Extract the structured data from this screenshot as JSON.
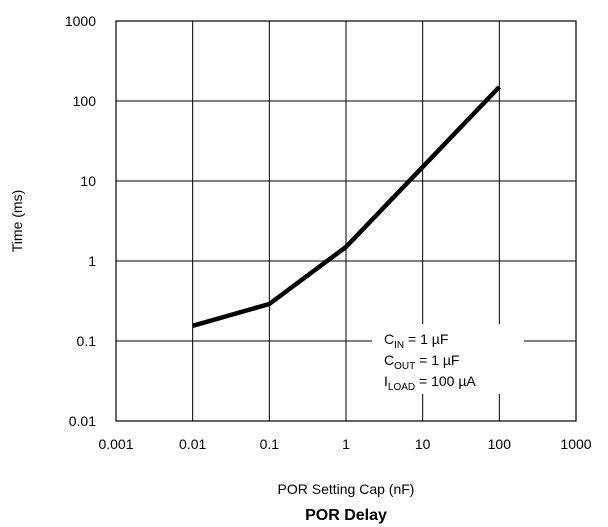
{
  "chart_data": {
    "type": "line",
    "title": "POR Delay",
    "xlabel": "POR Setting Cap (nF)",
    "ylabel": "Time (ms)",
    "xscale": "log",
    "yscale": "log",
    "xlim": [
      0.001,
      1000
    ],
    "ylim": [
      0.01,
      1000
    ],
    "grid": true,
    "x_tick_labels": [
      "0.001",
      "0.01",
      "0.1",
      "1",
      "10",
      "100",
      "1000"
    ],
    "y_tick_labels": [
      "0.01",
      "0.1",
      "1",
      "10",
      "100",
      "1000"
    ],
    "series": [
      {
        "x": [
          0.01,
          0.1,
          1,
          10,
          100
        ],
        "y": [
          0.155,
          0.29,
          1.5,
          15,
          150
        ]
      }
    ],
    "annotation": {
      "lines": [
        {
          "main": "C",
          "sub": "IN",
          "rest": " = 1 µF"
        },
        {
          "main": "C",
          "sub": "OUT",
          "rest": " = 1 µF"
        },
        {
          "main": "I",
          "sub": "LOAD",
          "rest": " = 100 µA"
        }
      ]
    }
  },
  "colors": {
    "line": "#000000",
    "grid": "#000000",
    "background": "#ffffff"
  }
}
